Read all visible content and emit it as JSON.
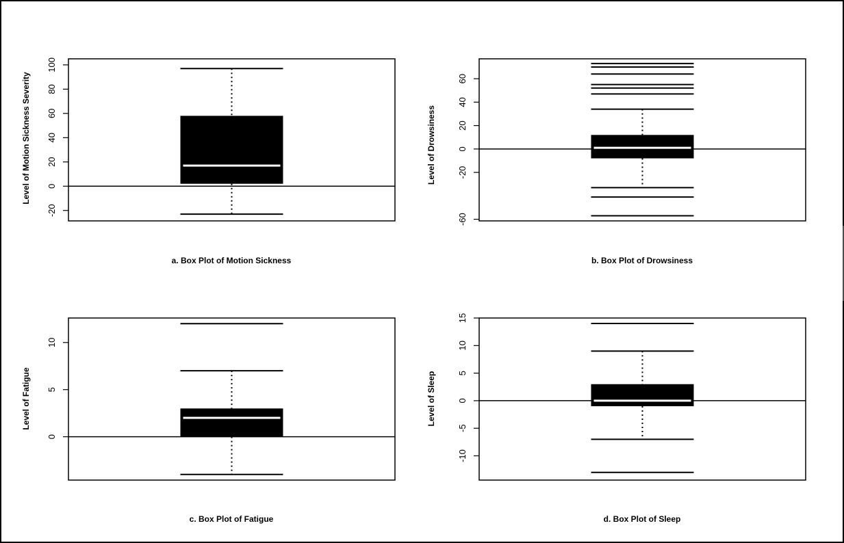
{
  "chart_data": [
    {
      "type": "box",
      "caption": "a. Box Plot of Motion Sickness",
      "ylabel": "Level of Motion Sickness Severity",
      "yticks": [
        -20,
        0,
        20,
        40,
        60,
        80,
        100
      ],
      "ylim": [
        -28.6,
        105
      ],
      "reference_line": 0,
      "box": {
        "q1": 2,
        "median": 17,
        "q3": 58
      },
      "whisker_low": -23,
      "whisker_high": 97,
      "outliers": []
    },
    {
      "type": "box",
      "caption": "b. Box Plot of Drowsiness",
      "ylabel": "Level of Drowsiness",
      "yticks": [
        -60,
        -20,
        0,
        20,
        40,
        60
      ],
      "ylim": [
        -61.4,
        77
      ],
      "reference_line": 0,
      "box": {
        "q1": -8,
        "median": 1,
        "q3": 12
      },
      "whisker_low": -33,
      "whisker_high": 34,
      "outliers": [
        -57,
        -41,
        47,
        52,
        55,
        64,
        70,
        73
      ]
    },
    {
      "type": "box",
      "caption": "c. Box Plot of Fatigue",
      "ylabel": "Level of Fatigue",
      "yticks": [
        0,
        5,
        10
      ],
      "ylim": [
        -4.6,
        12.6
      ],
      "reference_line": 0,
      "box": {
        "q1": 0,
        "median": 2,
        "q3": 3
      },
      "whisker_low": -4,
      "whisker_high": 7,
      "outliers": [
        12
      ]
    },
    {
      "type": "box",
      "caption": "d. Box Plot of Sleep",
      "ylabel": "Level of Sleep",
      "yticks": [
        -10,
        -5,
        0,
        5,
        10,
        15
      ],
      "ylim": [
        -14.4,
        15
      ],
      "reference_line": 0,
      "box": {
        "q1": -1,
        "median": 0,
        "q3": 3
      },
      "whisker_low": -7,
      "whisker_high": 9,
      "outliers": [
        -13,
        14
      ]
    }
  ]
}
